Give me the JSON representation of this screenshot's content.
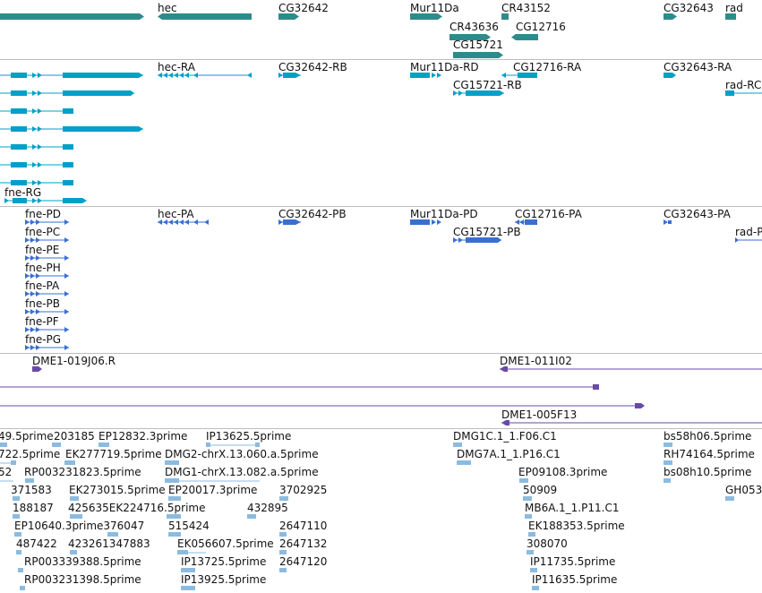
{
  "colors": {
    "gene": "#2e8b8b",
    "mrna": "#00a0c8",
    "cds": "#3a6fd0",
    "clone": "#6a4aa8",
    "est": "#8cbbe0",
    "separator": "#bdbdbd"
  },
  "tracks": {
    "genes": {
      "labels": [
        "hec",
        "CG32642",
        "Mur11Da",
        "CR43152",
        "CG32643",
        "rad",
        "CR43636",
        "CG12716",
        "CG15721"
      ]
    },
    "transcripts": {
      "labels": [
        "hec-RA",
        "CG32642-RB",
        "Mur11Da-RD",
        "CG12716-RA",
        "CG32643-RA",
        "rad-RC",
        "CG15721-RB",
        "fne-RG"
      ]
    },
    "cds": {
      "labels": [
        "hec-PA",
        "CG32642-PB",
        "Mur11Da-PD",
        "CG12716-PA",
        "CG32643-PA",
        "rad-P",
        "CG15721-PB",
        "fne-PD",
        "fne-PC",
        "fne-PE",
        "fne-PH",
        "fne-PA",
        "fne-PB",
        "fne-PF",
        "fne-PG"
      ]
    },
    "clones": {
      "labels": [
        "DME1-019J06.R",
        "DME1-011I02",
        "DME1-005F13"
      ]
    },
    "ests": {
      "labels": [
        "49.5prime",
        "203185",
        "EP12832.3prime",
        "IP13625.5prime",
        "DMG1C.1_1.F06.C1",
        "bs58h06.5prime",
        "722.5prime",
        "EK277719.5prime",
        "DMG2-chrX.13.060.a.5prime",
        "DMG7A.1_1.P16.C1",
        "RH74164.5prime",
        "52",
        "RP003231823.5prime",
        "DMG1-chrX.13.082.a.5prime",
        "EP09108.3prime",
        "bs08h10.5prime",
        "371583",
        "EK273015.5prime",
        "EP20017.3prime",
        "3702925",
        "50909",
        "GH053",
        "188187",
        "425635EK224716.5prime",
        "432895",
        "MB6A.1_1.P11.C1",
        "EP10640.3prime376047",
        "515424",
        "2647110",
        "EK188353.5prime",
        "487422",
        "423261347883",
        "EK056607.5prime",
        "2647132",
        "308070",
        "RP003339388.5prime",
        "IP13725.5prime",
        "2647120",
        "IP11735.5prime",
        "RP003231398.5prime",
        "IP13925.5prime",
        "IP11635.5prime"
      ]
    }
  }
}
